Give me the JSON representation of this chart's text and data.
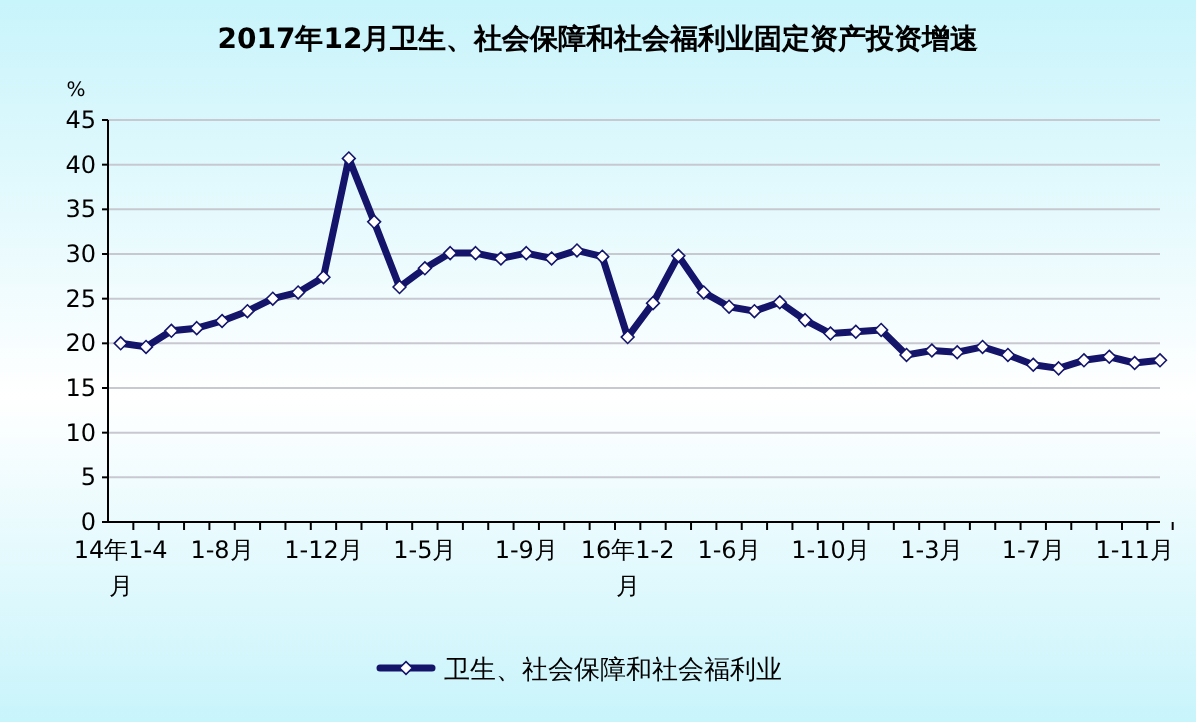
{
  "chart_data": {
    "type": "line",
    "title": "2017年12月卫生、社会保障和社会福利业固定资产投资增速",
    "ylabel": "%",
    "categories": [
      "14年1-4月",
      null,
      null,
      null,
      "1-8月",
      null,
      null,
      null,
      "1-12月",
      null,
      null,
      null,
      "1-5月",
      null,
      null,
      null,
      "1-9月",
      null,
      null,
      null,
      "16年1-2月",
      null,
      null,
      null,
      "1-6月",
      null,
      null,
      null,
      "1-10月",
      null,
      null,
      null,
      "1-3月",
      null,
      null,
      null,
      "1-7月",
      null,
      null,
      null,
      "1-11月",
      null
    ],
    "series": [
      {
        "name": "卫生、社会保障和社会福利业",
        "color": "#14146b",
        "values": [
          20.0,
          19.6,
          21.4,
          21.7,
          22.5,
          23.6,
          25.0,
          25.7,
          27.4,
          40.7,
          33.6,
          26.3,
          28.4,
          30.1,
          30.1,
          29.5,
          30.1,
          29.5,
          30.4,
          29.7,
          20.7,
          24.5,
          29.8,
          25.7,
          24.1,
          23.6,
          24.6,
          22.6,
          21.1,
          21.3,
          21.5,
          18.7,
          19.2,
          19.0,
          19.6,
          18.7,
          17.6,
          17.2,
          18.1,
          18.5,
          17.8,
          18.1
        ]
      }
    ],
    "ylim": [
      0,
      45
    ],
    "yticks": [
      0,
      5,
      10,
      15,
      20,
      25,
      30,
      35,
      40,
      45
    ],
    "grid": "y",
    "legend": "bottom",
    "marker": "diamond",
    "line_style": "solid"
  }
}
